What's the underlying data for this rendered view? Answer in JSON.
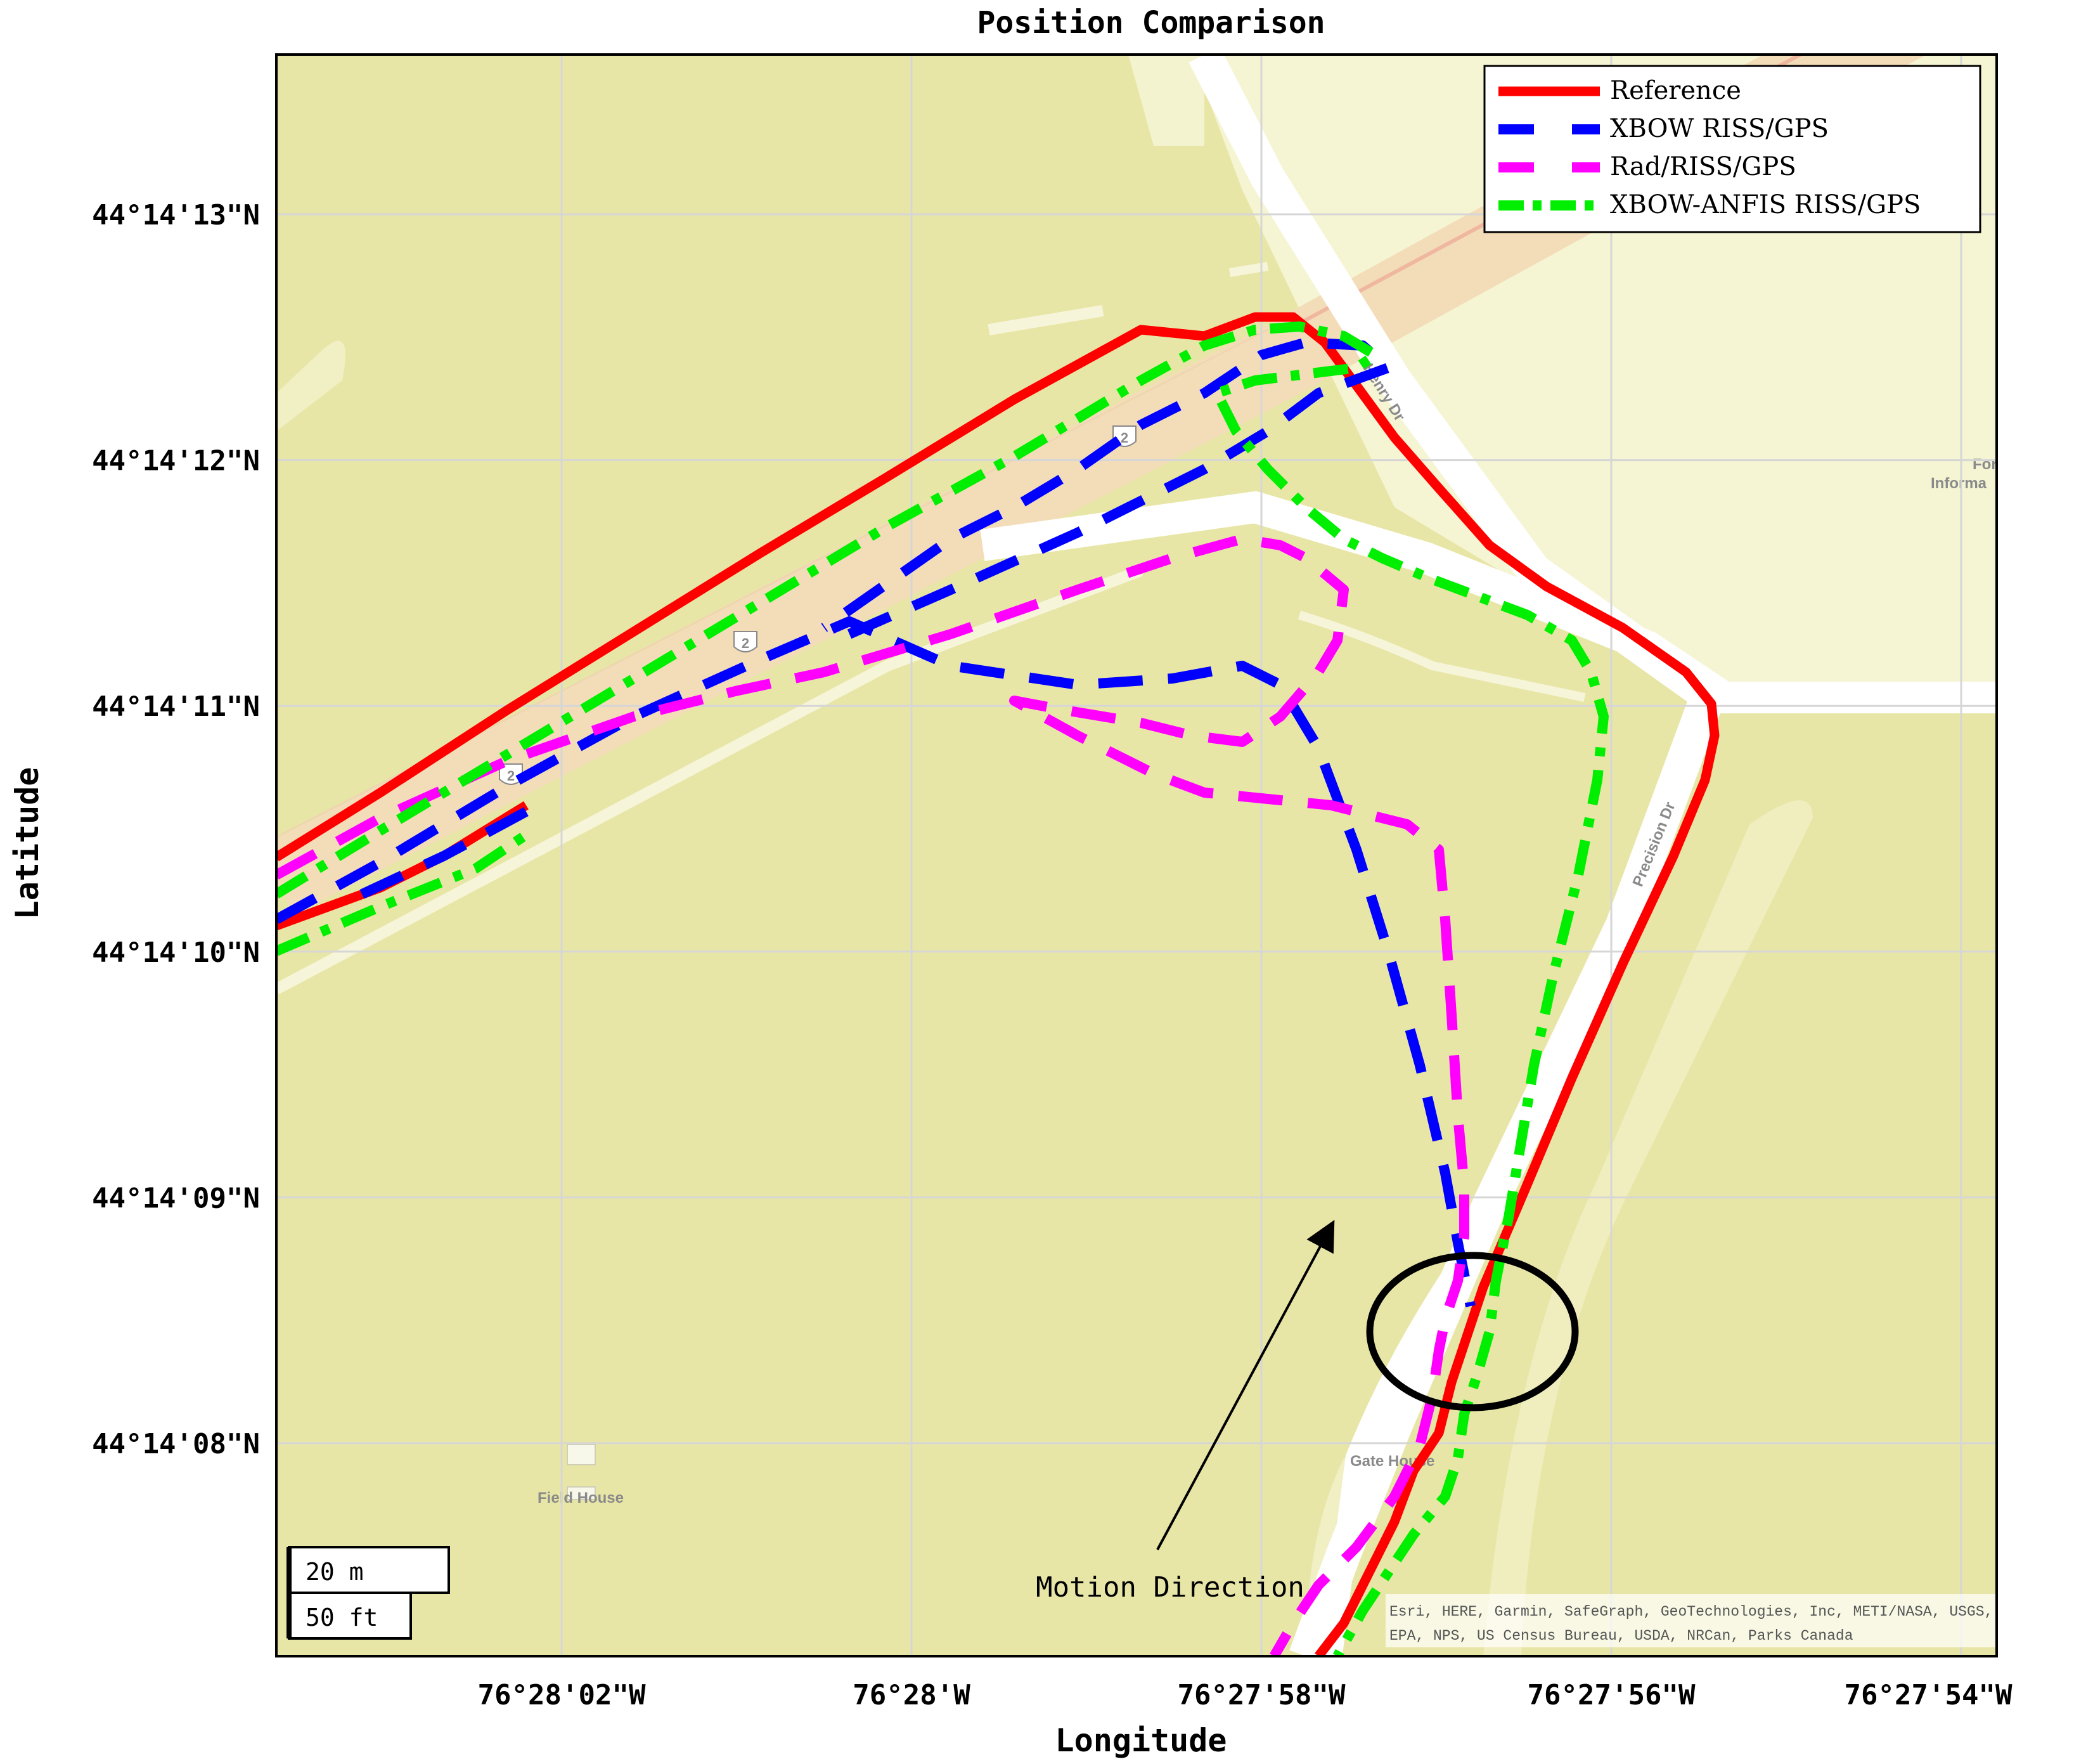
{
  "chart_data": {
    "type": "line",
    "title": "Position Comparison",
    "xlabel": "Longitude",
    "ylabel": "Latitude",
    "x_ticks": [
      "76°28'02\"W",
      "76°28'W",
      "76°27'58\"W",
      "76°27'56\"W",
      "76°27'54\"W"
    ],
    "y_ticks": [
      "44°14'13\"N",
      "44°14'12\"N",
      "44°14'11\"N",
      "44°14'10\"N",
      "44°14'09\"N",
      "44°14'08\"N"
    ],
    "grid": true,
    "legend_position": "top-right",
    "series": [
      {
        "name": "Reference",
        "color": "#ff0000",
        "style": "solid"
      },
      {
        "name": "XBOW RISS/GPS",
        "color": "#0000ff",
        "style": "dashed"
      },
      {
        "name": "Rad/RISS/GPS",
        "color": "#ff00ff",
        "style": "dashed"
      },
      {
        "name": "XBOW-ANFIS RISS/GPS",
        "color": "#00ee00",
        "style": "dash-dot"
      }
    ],
    "annotations": [
      {
        "text": "Motion Direction",
        "type": "arrow"
      },
      {
        "text": "",
        "type": "ellipse"
      }
    ]
  },
  "map": {
    "street_labels": [
      "Henry Dr",
      "Precision Dr"
    ],
    "place_labels": [
      "Field House",
      "Gate House",
      "Fort",
      "Informa"
    ],
    "route_shield": "2",
    "attribution": [
      "Esri, HERE, Garmin, SafeGraph, GeoTechnologies, Inc, METI/NASA, USGS,",
      "EPA, NPS, US Census Bureau, USDA, NRCan, Parks Canada"
    ],
    "scale_bar": {
      "metric": "20 m",
      "imperial": "50 ft"
    },
    "colors": {
      "land": "#e8e6a6",
      "urban": "#f5f4d3",
      "road": "#ffffff",
      "highway": "#f3dcb8"
    }
  }
}
